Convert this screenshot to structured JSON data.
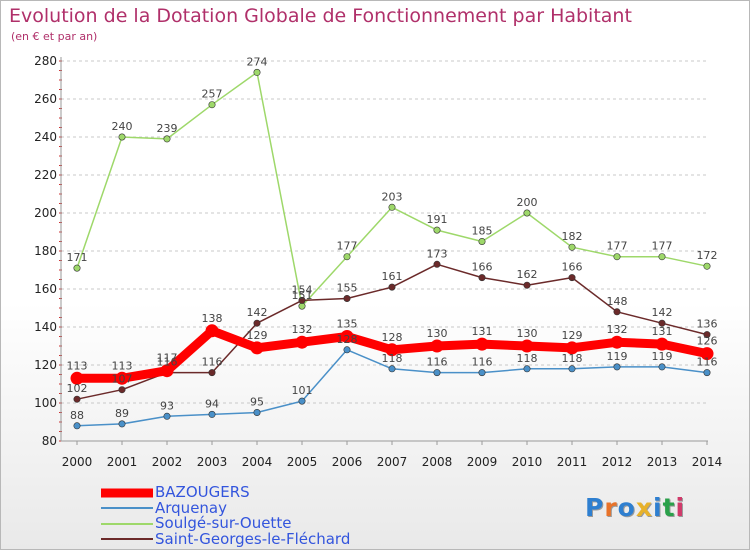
{
  "title": "Evolution de la Dotation Globale de Fonctionnement par Habitant",
  "subtitle": "(en € et par an)",
  "logo": {
    "text": "Proxiti",
    "colors": [
      "#2e7fd0",
      "#e8732a",
      "#2e7fd0",
      "#e8b22a",
      "#2e7fd0",
      "#2aa04a",
      "#d03a6a"
    ]
  },
  "chart_data": {
    "type": "line",
    "title": "Evolution de la Dotation Globale de Fonctionnement par Habitant",
    "subtitle": "(en € et par an)",
    "xlabel": "",
    "ylabel": "",
    "x": [
      "2000",
      "2001",
      "2002",
      "2003",
      "2004",
      "2005",
      "2006",
      "2007",
      "2008",
      "2009",
      "2010",
      "2011",
      "2012",
      "2013",
      "2014"
    ],
    "ylim": [
      80,
      280
    ],
    "yticks": [
      80,
      100,
      120,
      140,
      160,
      180,
      200,
      220,
      240,
      260,
      280
    ],
    "grid": "horizontal dashed",
    "legend_position": "bottom-left",
    "series": [
      {
        "name": "Arquenay",
        "color": "#4a90c8",
        "emphasis": false,
        "values": [
          88,
          89,
          93,
          94,
          95,
          101,
          128,
          118,
          116,
          116,
          118,
          118,
          119,
          119,
          116
        ]
      },
      {
        "name": "Soulgé-sur-Ouette",
        "color": "#9ed86a",
        "emphasis": false,
        "values": [
          171,
          240,
          239,
          257,
          274,
          151,
          177,
          203,
          191,
          185,
          200,
          182,
          177,
          177,
          172
        ]
      },
      {
        "name": "Saint-Georges-le-Fléchard",
        "color": "#6b2a2a",
        "emphasis": false,
        "values": [
          102,
          107,
          116,
          116,
          142,
          154,
          155,
          161,
          173,
          166,
          162,
          166,
          148,
          142,
          136
        ]
      },
      {
        "name": "BAZOUGERS",
        "color": "#ff0000",
        "emphasis": true,
        "values": [
          113,
          113,
          117,
          138,
          129,
          132,
          135,
          128,
          130,
          131,
          130,
          129,
          132,
          131,
          126
        ]
      }
    ]
  },
  "legend": [
    {
      "label": "BAZOUGERS",
      "color": "#ff0000",
      "thick": true
    },
    {
      "label": "Arquenay",
      "color": "#4a90c8",
      "thick": false
    },
    {
      "label": "Soulgé-sur-Ouette",
      "color": "#9ed86a",
      "thick": false
    },
    {
      "label": "Saint-Georges-le-Fléchard",
      "color": "#6b2a2a",
      "thick": false
    }
  ]
}
